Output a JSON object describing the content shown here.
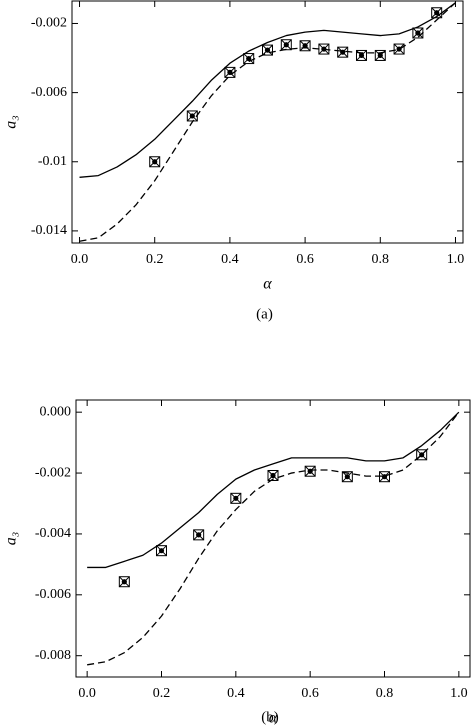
{
  "chart_data": [
    {
      "type": "line",
      "caption": "(a)",
      "xlabel": "α",
      "ylabel": "a₃",
      "xlim": [
        -0.02,
        1.02
      ],
      "ylim": [
        -0.0147,
        -0.0007
      ],
      "xticks": [
        {
          "value": 0,
          "label": "0.0"
        },
        0.2,
        0.4,
        0.6,
        0.8,
        {
          "value": 1,
          "label": "1.0"
        }
      ],
      "yticks": [
        -0.002,
        -0.006,
        -0.01,
        -0.014
      ],
      "series": [
        {
          "style": "solid",
          "color": "#000000",
          "x": [
            0,
            0.05,
            0.1,
            0.15,
            0.2,
            0.25,
            0.3,
            0.35,
            0.4,
            0.45,
            0.5,
            0.55,
            0.6,
            0.65,
            0.7,
            0.75,
            0.8,
            0.85,
            0.9,
            0.95,
            1.0
          ],
          "values": [
            -0.0109,
            -0.0108,
            -0.0103,
            -0.0096,
            -0.0087,
            -0.0076,
            -0.0065,
            -0.0053,
            -0.0043,
            -0.0036,
            -0.0031,
            -0.0027,
            -0.0025,
            -0.0024,
            -0.0025,
            -0.0026,
            -0.0027,
            -0.0026,
            -0.0022,
            -0.0016,
            -0.0008
          ]
        },
        {
          "style": "dashed",
          "color": "#000000",
          "x": [
            0,
            0.05,
            0.1,
            0.15,
            0.2,
            0.25,
            0.3,
            0.35,
            0.4,
            0.45,
            0.5,
            0.55,
            0.6,
            0.65,
            0.7,
            0.75,
            0.8,
            0.85,
            0.9,
            0.95,
            1.0
          ],
          "values": [
            -0.0146,
            -0.0144,
            -0.0136,
            -0.0125,
            -0.0111,
            -0.0094,
            -0.0077,
            -0.0062,
            -0.005,
            -0.0042,
            -0.0037,
            -0.0035,
            -0.0034,
            -0.0035,
            -0.0036,
            -0.0037,
            -0.0037,
            -0.0035,
            -0.0028,
            -0.0018,
            -0.0008
          ]
        },
        {
          "style": "marker",
          "color": "#000000",
          "x": [
            0.2,
            0.3,
            0.4,
            0.45,
            0.5,
            0.55,
            0.6,
            0.65,
            0.7,
            0.75,
            0.8,
            0.85,
            0.9,
            0.95
          ],
          "values": [
            -0.01,
            -0.00735,
            -0.00483,
            -0.00403,
            -0.00354,
            -0.00323,
            -0.00329,
            -0.00348,
            -0.00366,
            -0.00385,
            -0.00385,
            -0.00348,
            -0.00255,
            -0.00138
          ]
        }
      ]
    },
    {
      "type": "line",
      "caption": "(b)",
      "xlabel": "α",
      "ylabel": "a₃",
      "xlim": [
        -0.03,
        1.03
      ],
      "ylim": [
        -0.0087,
        0.0004
      ],
      "xticks": [
        {
          "value": 0,
          "label": "0.0"
        },
        0.2,
        0.4,
        0.6,
        0.8,
        {
          "value": 1,
          "label": "1.0"
        }
      ],
      "yticks": [
        {
          "value": 0,
          "label": "0.000"
        },
        -0.002,
        -0.004,
        -0.006,
        -0.008
      ],
      "series": [
        {
          "style": "solid",
          "color": "#000000",
          "x": [
            0,
            0.05,
            0.1,
            0.15,
            0.2,
            0.25,
            0.3,
            0.35,
            0.4,
            0.45,
            0.5,
            0.55,
            0.6,
            0.65,
            0.7,
            0.75,
            0.8,
            0.85,
            0.9,
            0.95,
            1.0
          ],
          "values": [
            -0.0051,
            -0.0051,
            -0.0049,
            -0.0047,
            -0.0043,
            -0.0038,
            -0.0033,
            -0.0027,
            -0.0022,
            -0.0019,
            -0.0017,
            -0.0015,
            -0.0015,
            -0.0015,
            -0.0015,
            -0.0016,
            -0.0016,
            -0.0015,
            -0.0011,
            -0.0006,
            0
          ]
        },
        {
          "style": "dashed",
          "color": "#000000",
          "x": [
            0,
            0.05,
            0.1,
            0.15,
            0.2,
            0.25,
            0.3,
            0.35,
            0.4,
            0.45,
            0.5,
            0.55,
            0.6,
            0.65,
            0.7,
            0.75,
            0.8,
            0.85,
            0.9,
            0.95,
            1.0
          ],
          "values": [
            -0.0083,
            -0.0082,
            -0.0079,
            -0.0074,
            -0.0067,
            -0.0058,
            -0.0048,
            -0.0039,
            -0.0032,
            -0.0026,
            -0.0022,
            -0.002,
            -0.0019,
            -0.0019,
            -0.002,
            -0.0021,
            -0.0021,
            -0.0019,
            -0.0014,
            -0.0008,
            0
          ]
        },
        {
          "style": "marker",
          "color": "#000000",
          "x": [
            0.1,
            0.2,
            0.3,
            0.4,
            0.5,
            0.6,
            0.7,
            0.8,
            0.9
          ],
          "values": [
            -0.00557,
            -0.00455,
            -0.00403,
            -0.00283,
            -0.00208,
            -0.00194,
            -0.00212,
            -0.00212,
            -0.0014
          ]
        }
      ]
    }
  ]
}
